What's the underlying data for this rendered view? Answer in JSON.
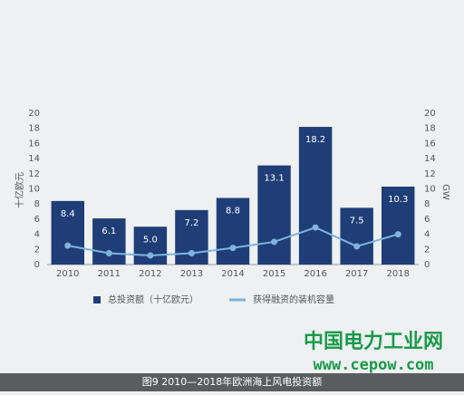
{
  "chart_data": {
    "type": "bar",
    "categories": [
      "2010",
      "2011",
      "2012",
      "2013",
      "2014",
      "2015",
      "2016",
      "2017",
      "2018"
    ],
    "series": [
      {
        "name": "总投资额（十亿欧元）",
        "type": "bar",
        "color": "#1f3e78",
        "values": [
          8.4,
          6.1,
          5.0,
          7.2,
          8.8,
          13.1,
          18.2,
          7.5,
          10.3
        ],
        "value_labels": [
          "8.4",
          "6.1",
          "5.0",
          "7.2",
          "8.8",
          "13.1",
          "18.2",
          "7.5",
          "10.3"
        ]
      },
      {
        "name": "获得融资的装机容量",
        "type": "line",
        "color": "#7fb4de",
        "axis": "y2",
        "values": [
          2.5,
          1.5,
          1.2,
          1.5,
          2.2,
          3.0,
          4.9,
          2.4,
          4.0
        ]
      }
    ],
    "ylabel": "十亿欧元",
    "y2label": "GW",
    "ylim": [
      0,
      20
    ],
    "yticks": [
      0,
      2,
      4,
      6,
      8,
      10,
      12,
      14,
      16,
      18,
      20
    ],
    "y2lim": [
      0,
      20
    ],
    "y2ticks": [
      0,
      2,
      4,
      6,
      8,
      10,
      12,
      14,
      16,
      18,
      20
    ],
    "grid": false
  },
  "watermark": {
    "name": "中国电力工业网",
    "url": "www.cepow.com"
  },
  "caption": "图9 2010—2018年欧洲海上风电投资额"
}
